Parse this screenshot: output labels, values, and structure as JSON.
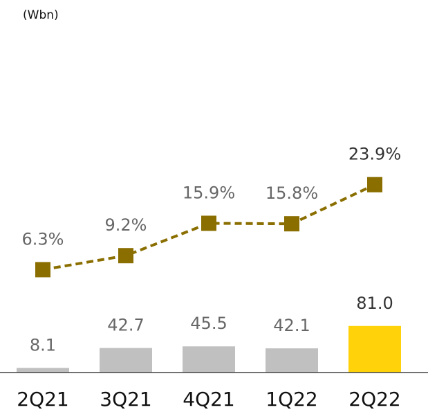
{
  "chart_data": {
    "type": "bar_line",
    "unit_label": "(Wbn)",
    "categories": [
      "2Q21",
      "3Q21",
      "4Q21",
      "1Q22",
      "2Q22"
    ],
    "series": [
      {
        "type": "bar",
        "values": [
          8.1,
          42.7,
          45.5,
          42.1,
          81.0
        ],
        "value_labels": [
          "8.1",
          "42.7",
          "45.5",
          "42.1",
          "81.0"
        ],
        "colors": [
          "#c0c0c0",
          "#c0c0c0",
          "#c0c0c0",
          "#c0c0c0",
          "#ffd20a"
        ],
        "label_colors": [
          "#666666",
          "#666666",
          "#666666",
          "#666666",
          "#333333"
        ]
      },
      {
        "type": "line",
        "axis": "y2",
        "color": "#8a6e00",
        "dashed": true,
        "values": [
          6.3,
          9.2,
          15.9,
          15.8,
          23.9
        ],
        "value_labels": [
          "6.3%",
          "9.2%",
          "15.9%",
          "15.8%",
          "23.9%"
        ],
        "label_colors": [
          "#666666",
          "#666666",
          "#666666",
          "#666666",
          "#333333"
        ]
      }
    ],
    "ylim": [
      0,
      600
    ],
    "y2lim": [
      -15,
      56.4
    ]
  }
}
